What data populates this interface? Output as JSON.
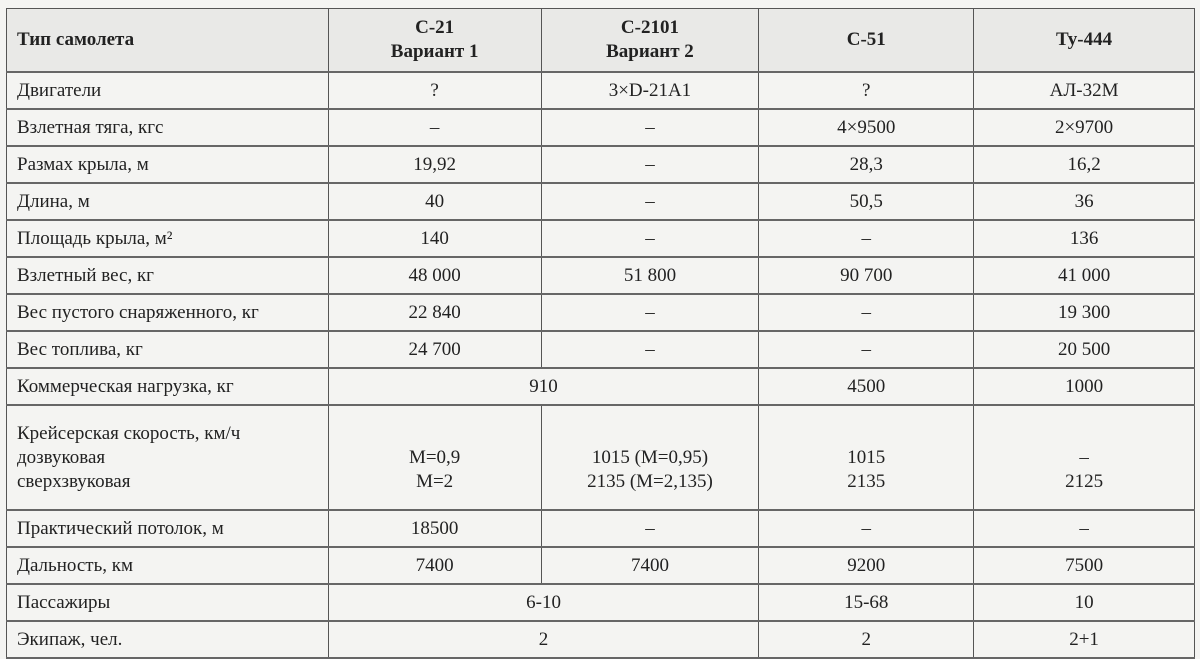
{
  "table": {
    "header": [
      "Тип самолета",
      "С-21\nВариант 1",
      "С-2101\nВариант 2",
      "С-51",
      "Ту-444"
    ],
    "rows": [
      {
        "label": "Двигатели",
        "cells": [
          {
            "v": "?"
          },
          {
            "v": "3×D-21A1"
          },
          {
            "v": "?"
          },
          {
            "v": "АЛ-32М"
          }
        ]
      },
      {
        "label": "Взлетная тяга, кгс",
        "cells": [
          {
            "v": "–"
          },
          {
            "v": "–"
          },
          {
            "v": "4×9500"
          },
          {
            "v": "2×9700"
          }
        ]
      },
      {
        "label": "Размах крыла, м",
        "cells": [
          {
            "v": "19,92"
          },
          {
            "v": "–"
          },
          {
            "v": "28,3"
          },
          {
            "v": "16,2"
          }
        ]
      },
      {
        "label": "Длина, м",
        "cells": [
          {
            "v": "40"
          },
          {
            "v": "–"
          },
          {
            "v": "50,5"
          },
          {
            "v": "36"
          }
        ]
      },
      {
        "label": "Площадь крыла, м²",
        "cells": [
          {
            "v": "140"
          },
          {
            "v": "–"
          },
          {
            "v": "–"
          },
          {
            "v": "136"
          }
        ]
      },
      {
        "label": "Взлетный вес, кг",
        "cells": [
          {
            "v": "48 000"
          },
          {
            "v": "51 800"
          },
          {
            "v": "90 700"
          },
          {
            "v": "41 000"
          }
        ]
      },
      {
        "label": "Вес пустого снаряженного, кг",
        "cells": [
          {
            "v": "22 840"
          },
          {
            "v": "–"
          },
          {
            "v": "–"
          },
          {
            "v": "19 300"
          }
        ]
      },
      {
        "label": "Вес топлива, кг",
        "cells": [
          {
            "v": "24 700"
          },
          {
            "v": "–"
          },
          {
            "v": "–"
          },
          {
            "v": "20 500"
          }
        ]
      },
      {
        "label": "Коммерческая нагрузка, кг",
        "cells": [
          {
            "v": "910",
            "span": 2
          },
          {
            "v": "4500"
          },
          {
            "v": "1000"
          }
        ]
      },
      {
        "label": "Крейсерская скорость, км/ч\n  дозвуковая\n  сверхзвуковая",
        "tall": true,
        "cells": [
          {
            "v": "\nM=0,9\nM=2"
          },
          {
            "v": "\n1015 (M=0,95)\n2135 (M=2,135)"
          },
          {
            "v": "\n1015\n2135"
          },
          {
            "v": "\n–\n2125"
          }
        ]
      },
      {
        "label": "Практический потолок, м",
        "cells": [
          {
            "v": "18500"
          },
          {
            "v": "–"
          },
          {
            "v": "–"
          },
          {
            "v": "–"
          }
        ]
      },
      {
        "label": "Дальность, км",
        "cells": [
          {
            "v": "7400"
          },
          {
            "v": "7400"
          },
          {
            "v": "9200"
          },
          {
            "v": "7500"
          }
        ]
      },
      {
        "label": "Пассажиры",
        "cells": [
          {
            "v": "6-10",
            "span": 2
          },
          {
            "v": "15-68"
          },
          {
            "v": "10"
          }
        ]
      },
      {
        "label": "Экипаж, чел.",
        "cells": [
          {
            "v": "2",
            "span": 2
          },
          {
            "v": "2"
          },
          {
            "v": "2+1"
          }
        ]
      }
    ]
  }
}
